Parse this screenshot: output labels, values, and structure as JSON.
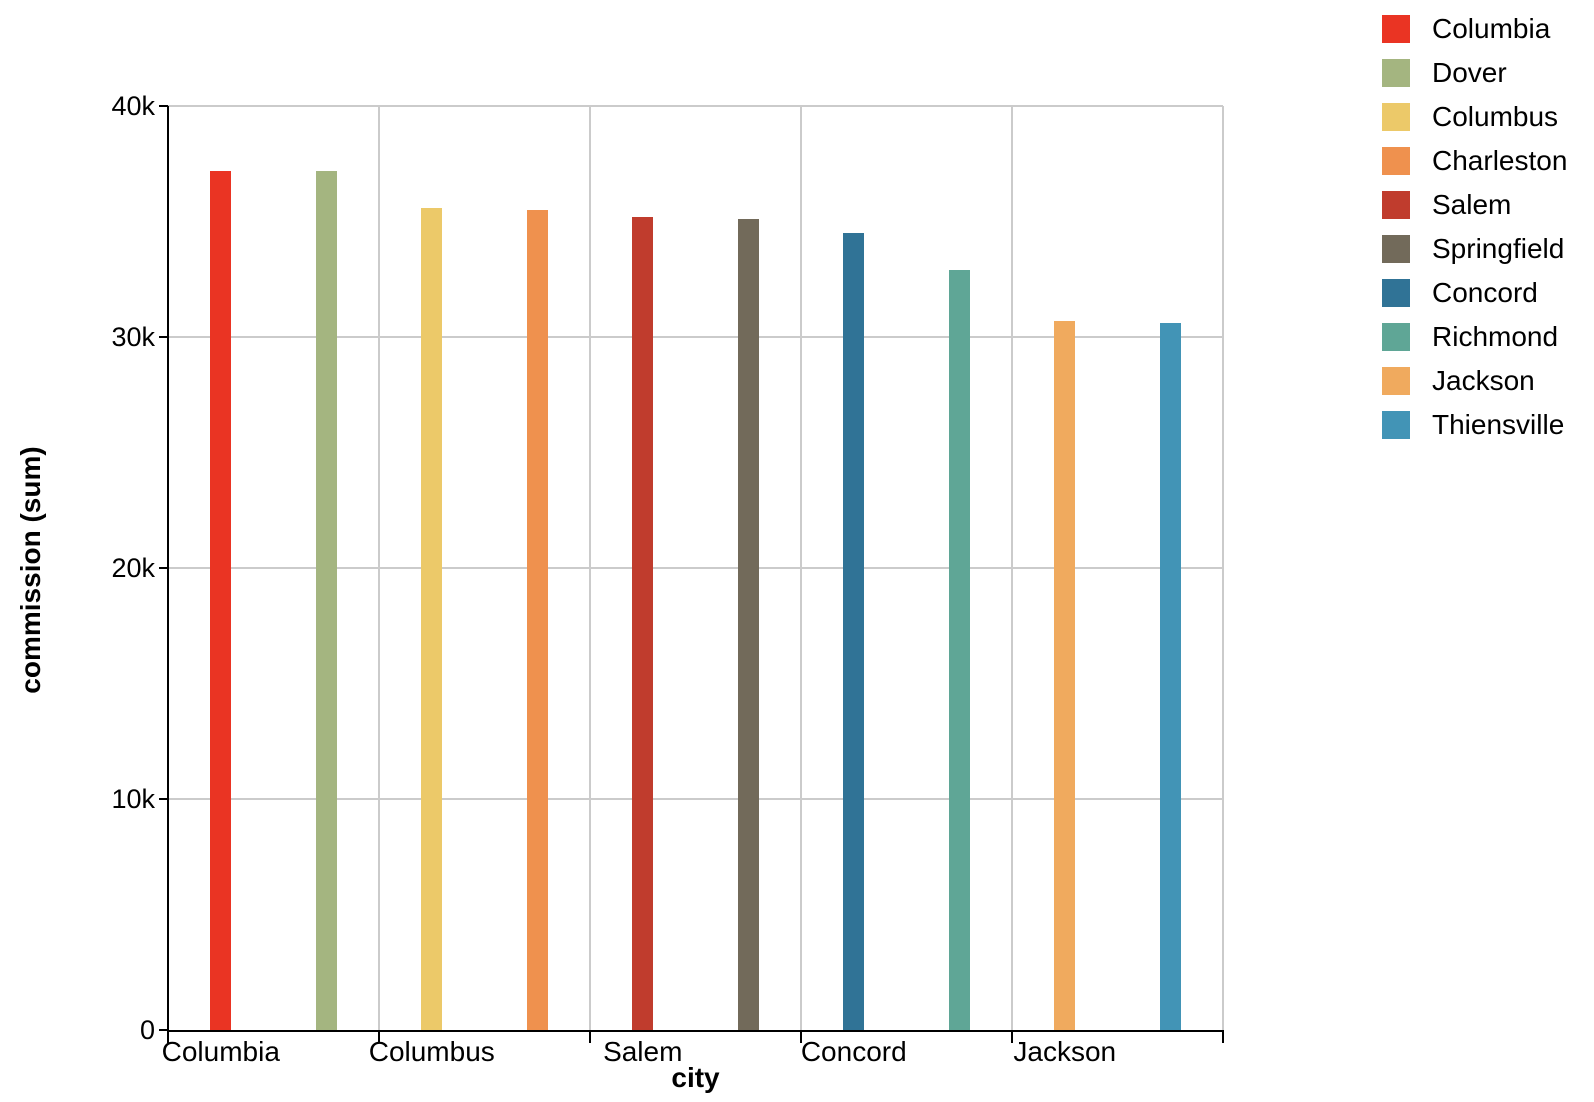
{
  "chart_data": {
    "type": "bar",
    "title": "",
    "xlabel": "city",
    "ylabel": "commission (sum)",
    "categories": [
      "Columbia",
      "Dover",
      "Columbus",
      "Charleston",
      "Salem",
      "Springfield",
      "Concord",
      "Richmond",
      "Jackson",
      "Thiensville"
    ],
    "values": [
      37200,
      37200,
      35600,
      35500,
      35200,
      35100,
      34500,
      32900,
      30700,
      30600
    ],
    "bar_colors": [
      "#ea3423",
      "#a4b580",
      "#ecc969",
      "#ef914e",
      "#c03c2d",
      "#726a5a",
      "#307396",
      "#5fa696",
      "#f0aa5e",
      "#4294b6"
    ],
    "ylim": [
      0,
      40000
    ],
    "ytick_values": [
      0,
      10000,
      20000,
      30000,
      40000
    ],
    "ytick_labels": [
      "0",
      "10k",
      "20k",
      "30k",
      "40k"
    ],
    "xtick_labels_shown": [
      "Columbia",
      "Columbus",
      "Salem",
      "Concord",
      "Jackson"
    ],
    "grid": true,
    "grid_color": "#cbcbcb",
    "axis_color": "#000000",
    "legend_position": "top-right",
    "legend": [
      {
        "label": "Columbia",
        "color": "#ea3423"
      },
      {
        "label": "Dover",
        "color": "#a4b580"
      },
      {
        "label": "Columbus",
        "color": "#ecc969"
      },
      {
        "label": "Charleston",
        "color": "#ef914e"
      },
      {
        "label": "Salem",
        "color": "#c03c2d"
      },
      {
        "label": "Springfield",
        "color": "#726a5a"
      },
      {
        "label": "Concord",
        "color": "#307396"
      },
      {
        "label": "Richmond",
        "color": "#5fa696"
      },
      {
        "label": "Jackson",
        "color": "#f0aa5e"
      },
      {
        "label": "Thiensville",
        "color": "#4294b6"
      }
    ]
  }
}
